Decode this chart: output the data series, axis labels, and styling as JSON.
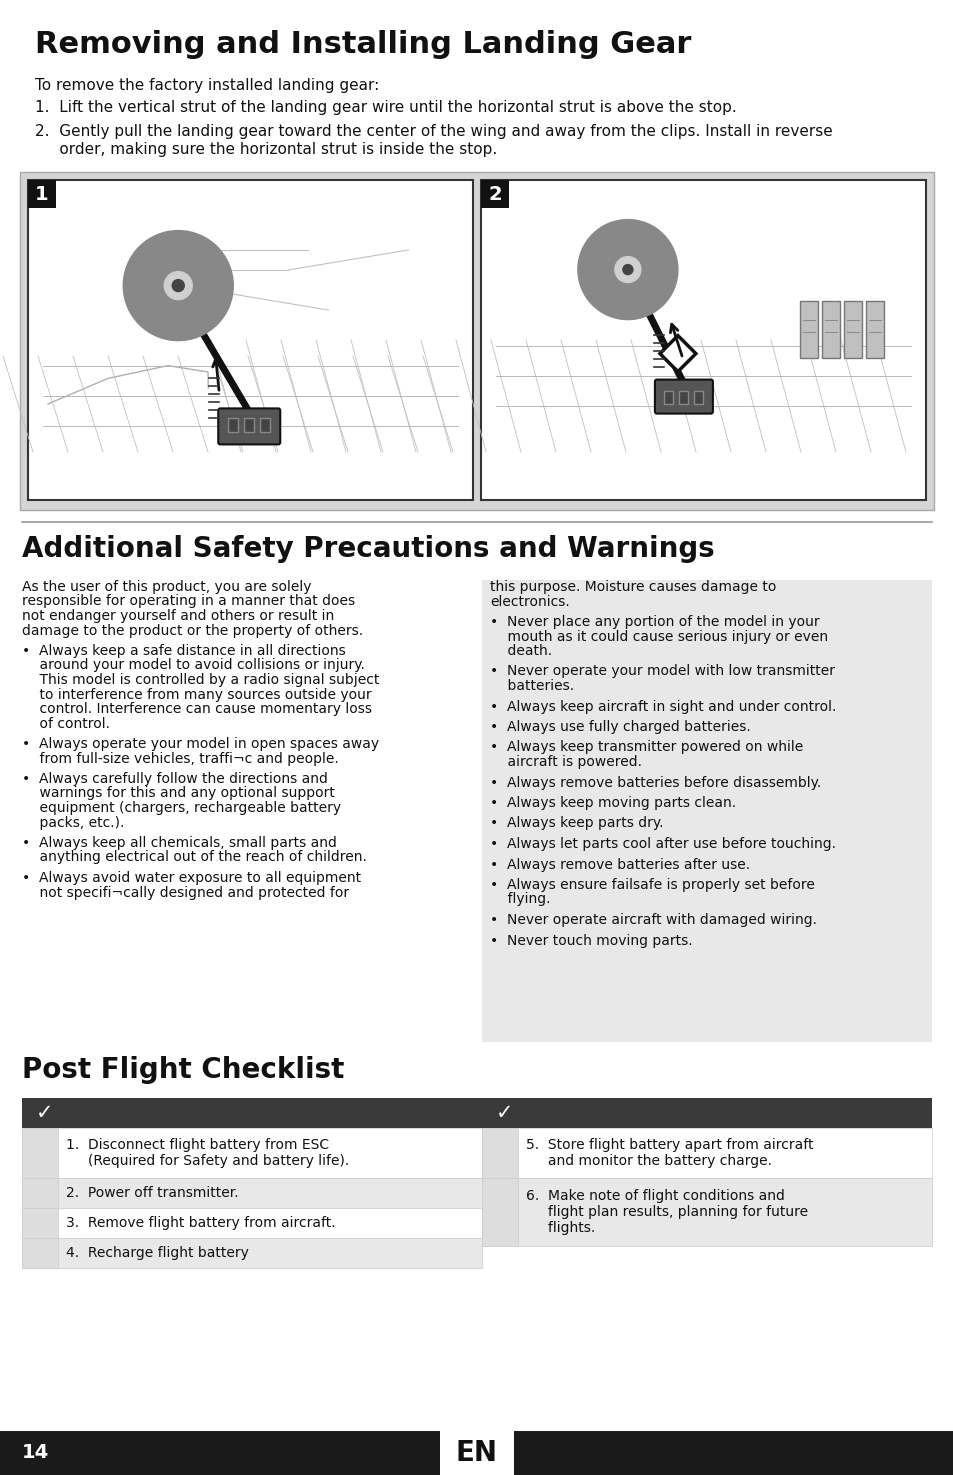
{
  "page_bg": "#ffffff",
  "footer_bg": "#1a1a1a",
  "footer_text_color": "#ffffff",
  "page_number": "14",
  "page_lang": "EN",
  "section1_title": "Removing and Installing Landing Gear",
  "section1_intro": "To remove the factory installed landing gear:",
  "step1": "1.  Lift the vertical strut of the landing gear wire until the horizontal strut is above the stop.",
  "step2_line1": "2.  Gently pull the landing gear toward the center of the wing and away from the clips. Install in reverse",
  "step2_line2": "     order, making sure the horizontal strut is inside the stop.",
  "section2_title": "Additional Safety Precautions and Warnings",
  "left_col_paragraphs": [
    "As the user of this product, you are solely\nresponsible for operating in a manner that does\nnot endanger yourself and others or result in\ndamage to the product or the property of others.",
    "•  Always keep a safe distance in all directions\n    around your model to avoid collisions or injury.\n    This model is controlled by a radio signal subject\n    to interference from many sources outside your\n    control. Interference can cause momentary loss\n    of control.",
    "•  Always operate your model in open spaces away\n    from full-size vehicles, traffi¬c and people.",
    "•  Always carefully follow the directions and\n    warnings for this and any optional support\n    equipment (chargers, rechargeable battery\n    packs, etc.).",
    "•  Always keep all chemicals, small parts and\n    anything electrical out of the reach of children.",
    "•  Always avoid water exposure to all equipment\n    not specifi¬cally designed and protected for"
  ],
  "right_col_paragraphs": [
    "this purpose. Moisture causes damage to\nelectronics.",
    "•  Never place any portion of the model in your\n    mouth as it could cause serious injury or even\n    death.",
    "•  Never operate your model with low transmitter\n    batteries.",
    "•  Always keep aircraft in sight and under control.",
    "•  Always use fully charged batteries.",
    "•  Always keep transmitter powered on while\n    aircraft is powered.",
    "•  Always remove batteries before disassembly.",
    "•  Always keep moving parts clean.",
    "•  Always keep parts dry.",
    "•  Always let parts cool after use before touching.",
    "•  Always remove batteries after use.",
    "•  Always ensure failsafe is properly set before\n    flying.",
    "•  Never operate aircraft with damaged wiring.",
    "•  Never touch moving parts."
  ],
  "section3_title": "Post Flight Checklist",
  "checklist_left": [
    "1.  Disconnect flight battery from ESC\n     (Required for Safety and battery life).",
    "2.  Power off transmitter.",
    "3.  Remove flight battery from aircraft.",
    "4.  Recharge flight battery"
  ],
  "checklist_right": [
    "5.  Store flight battery apart from aircraft\n     and monitor the battery charge.",
    "6.  Make note of flight conditions and\n     flight plan results, planning for future\n     flights."
  ],
  "check_bg": "#3a3a3a",
  "check_text": "#ffffff",
  "row_bg_alt": "#e8e8e8",
  "row_bg_main": "#ffffff",
  "right_col_bg": "#e8e8e8"
}
